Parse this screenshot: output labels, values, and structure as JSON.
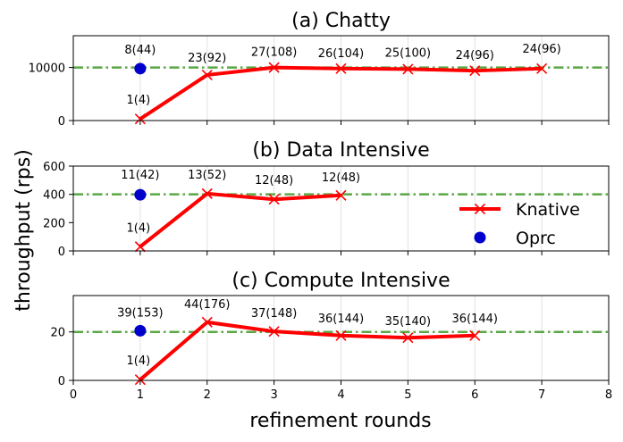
{
  "chart_data": {
    "type": "line",
    "shared_xlabel": "refinement rounds",
    "shared_ylabel": "throughput (rps)",
    "xlim": [
      0,
      8
    ],
    "xticks": [
      "0",
      "1",
      "2",
      "3",
      "4",
      "5",
      "6",
      "7",
      "8"
    ],
    "grid": "vertical",
    "colors": {
      "knative": "#ff0000",
      "oprc": "#0000cc",
      "reference": "#5aa845",
      "grid": "#e0e0e0"
    },
    "legend": {
      "placement": "in panel b, right",
      "entries": [
        "Knative",
        "Oprc"
      ]
    },
    "panels": [
      {
        "title": "(a) Chatty",
        "ylim": [
          0,
          16000
        ],
        "yticks": [
          0,
          10000
        ],
        "ytick_labels": [
          "0",
          "10000"
        ],
        "reference_line": 10000,
        "series": [
          {
            "name": "Knative",
            "x": [
              1,
              2,
              3,
              4,
              5,
              6,
              7
            ],
            "y": [
              300,
              8600,
              10000,
              9800,
              9700,
              9400,
              9800
            ]
          },
          {
            "name": "Oprc",
            "x": [
              1
            ],
            "y": [
              9800
            ]
          }
        ],
        "annotations": [
          "8(44)",
          "1(4)",
          "23(92)",
          "27(108)",
          "26(104)",
          "25(100)",
          "24(96)",
          "24(96)"
        ]
      },
      {
        "title": "(b) Data Intensive",
        "ylim": [
          0,
          600
        ],
        "yticks": [
          0,
          200,
          400,
          600
        ],
        "ytick_labels": [
          "0",
          "200",
          "400",
          "600"
        ],
        "reference_line": 400,
        "series": [
          {
            "name": "Knative",
            "x": [
              1,
              2,
              3,
              4
            ],
            "y": [
              30,
              405,
              365,
              393
            ]
          },
          {
            "name": "Oprc",
            "x": [
              1
            ],
            "y": [
              397
            ]
          }
        ],
        "annotations": [
          "11(42)",
          "1(4)",
          "13(52)",
          "12(48)",
          "12(48)"
        ]
      },
      {
        "title": "(c) Compute Intensive",
        "ylim": [
          0,
          35
        ],
        "yticks": [
          0,
          20
        ],
        "ytick_labels": [
          "0",
          "20"
        ],
        "reference_line": 20,
        "series": [
          {
            "name": "Knative",
            "x": [
              1,
              2,
              3,
              4,
              5,
              6
            ],
            "y": [
              0.3,
              24,
              20.2,
              18.5,
              17.6,
              18.5
            ]
          },
          {
            "name": "Oprc",
            "x": [
              1
            ],
            "y": [
              20.5
            ]
          }
        ],
        "annotations": [
          "39(153)",
          "1(4)",
          "44(176)",
          "37(148)",
          "36(144)",
          "35(140)",
          "36(144)"
        ]
      }
    ]
  }
}
